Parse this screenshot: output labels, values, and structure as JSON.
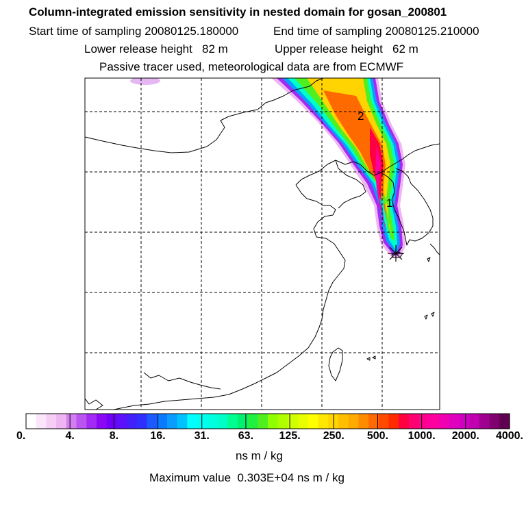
{
  "header": {
    "title": "Column-integrated emission sensitivity in nested domain for gosan_200801",
    "start_label": "Start time of sampling",
    "start_value": "20080125.180000",
    "end_label": "End time of sampling",
    "end_value": "20080125.210000",
    "lower_label": "Lower release height",
    "lower_value": "82 m",
    "upper_label": "Upper release height",
    "upper_value": "62 m",
    "note": "Passive tracer used, meteorological data are from ECMWF"
  },
  "chart_data": {
    "type": "heatmap",
    "title": "Column-integrated emission sensitivity in nested domain for gosan_200801",
    "release_station": "gosan",
    "plume_labels": [
      {
        "text": "1",
        "day": 1
      },
      {
        "text": "2",
        "day": 2
      }
    ],
    "colorbar": {
      "unit": "ns m / kg",
      "scale": "log",
      "range": [
        0,
        4000
      ],
      "tick_labels": [
        "0.",
        "4.",
        "8.",
        "16.",
        "31.",
        "63.",
        "125.",
        "250.",
        "500.",
        "1000.",
        "2000.",
        "4000."
      ],
      "colors": [
        "#ffffff",
        "#fbe5fb",
        "#f5cdf5",
        "#efb5f2",
        "#d27ef0",
        "#bb55f2",
        "#a22af4",
        "#8a08f6",
        "#7000f8",
        "#5d10fa",
        "#4220fc",
        "#3030fe",
        "#1c5aff",
        "#0a7aff",
        "#0a9cff",
        "#00c2ff",
        "#00ffff",
        "#00fff0",
        "#00ffe0",
        "#00ffc8",
        "#00ff90",
        "#00f070",
        "#20f040",
        "#50f020",
        "#90ff00",
        "#b0ff00",
        "#d0ff00",
        "#e8ff00",
        "#ffff00",
        "#ffe800",
        "#ffd400",
        "#ffbe00",
        "#ffaa00",
        "#ff8c00",
        "#ff6a00",
        "#ff4a00",
        "#ff2a00",
        "#ff0040",
        "#ff0070",
        "#ff0090",
        "#ff00a0",
        "#f000b0",
        "#e000c0",
        "#d000c0",
        "#c000b0",
        "#a00090",
        "#800070",
        "#600050"
      ]
    },
    "max_label": "Maximum value",
    "max_value": "0.303E+04 ns m / kg"
  }
}
